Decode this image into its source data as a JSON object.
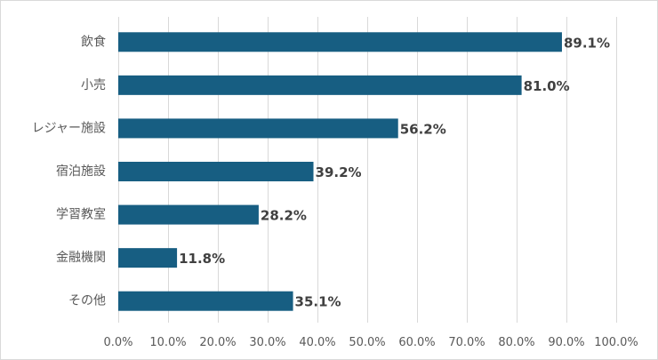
{
  "chart_data": {
    "type": "bar",
    "orientation": "horizontal",
    "categories": [
      "飲食",
      "小売",
      "レジャー施設",
      "宿泊施設",
      "学習教室",
      "金融機関",
      "その他"
    ],
    "values": [
      89.1,
      81.0,
      56.2,
      39.2,
      28.2,
      11.8,
      35.1
    ],
    "value_labels": [
      "89.1%",
      "81.0%",
      "56.2%",
      "39.2%",
      "28.2%",
      "11.8%",
      "35.1%"
    ],
    "xlim": [
      0,
      100
    ],
    "xticks": [
      0,
      10,
      20,
      30,
      40,
      50,
      60,
      70,
      80,
      90,
      100
    ],
    "xtick_labels": [
      "0.0%",
      "10.0%",
      "20.0%",
      "30.0%",
      "40.0%",
      "50.0%",
      "60.0%",
      "70.0%",
      "80.0%",
      "90.0%",
      "100.0%"
    ],
    "grid": "vertical",
    "legend": "none",
    "colors": {
      "bar": "#175e82",
      "grid": "#d9d9d9",
      "label_text": "#595959",
      "value_text": "#404040"
    }
  }
}
